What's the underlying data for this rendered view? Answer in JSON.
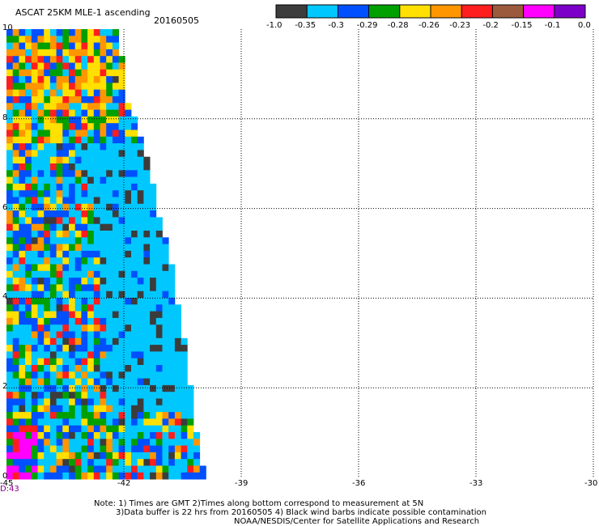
{
  "header": {
    "title": "ASCAT 25KM MLE-1 ascending",
    "date": "20160505"
  },
  "colorbar": {
    "colors": [
      "#3c3c3c",
      "#00c8ff",
      "#0050ff",
      "#00a000",
      "#ffe000",
      "#ff9600",
      "#ff1e1e",
      "#9b5a3c",
      "#ff00ff",
      "#7d00c8"
    ],
    "labels": [
      "-1.0",
      "-0.35",
      "-0.3",
      "-0.29",
      "-0.28",
      "-0.26",
      "-0.23",
      "-0.2",
      "-0.15",
      "-0.1",
      "0.0"
    ]
  },
  "chart_data": {
    "type": "heatmap",
    "title": "ASCAT 25KM MLE-1 ascending",
    "x_ticks": [
      -45,
      -42,
      -39,
      -36,
      -33,
      -30
    ],
    "x_tick_labels": [
      "-45",
      "-42",
      "-39",
      "-36",
      "-33",
      "-30"
    ],
    "y_ticks": [
      0,
      2,
      4,
      6,
      8,
      10
    ],
    "y_tick_labels": [
      "0",
      "2",
      "4",
      "6",
      "8",
      "10"
    ],
    "xlim": [
      -45,
      -30
    ],
    "ylim": [
      0,
      10
    ],
    "grid": true,
    "time_label": "D:43",
    "legend_placement": "top-right",
    "colorbar_labels": [
      "-1.0",
      "-0.35",
      "-0.3",
      "-0.29",
      "-0.28",
      "-0.26",
      "-0.23",
      "-0.2",
      "-0.15",
      "-0.1",
      "0.0"
    ],
    "swath_right_edge": [
      {
        "lat": 10.0,
        "lon": -42.2
      },
      {
        "lat": 8.5,
        "lon": -42.0
      },
      {
        "lat": 7.3,
        "lon": -41.5
      },
      {
        "lat": 6.0,
        "lon": -41.2
      },
      {
        "lat": 5.0,
        "lon": -40.9
      },
      {
        "lat": 4.0,
        "lon": -40.7
      },
      {
        "lat": 3.0,
        "lon": -40.5
      },
      {
        "lat": 1.5,
        "lon": -40.3
      },
      {
        "lat": 0.0,
        "lon": -40.0
      }
    ]
  },
  "notes": {
    "line1": "Note: 1) Times are GMT 2)Times along bottom correspond to measurement at 5N",
    "line2": "3)Data buffer is 22 hrs from 20160505 4) Black wind barbs indicate possible contamination",
    "line3": "NOAA/NESDIS/Center for Satellite Applications and Research"
  }
}
